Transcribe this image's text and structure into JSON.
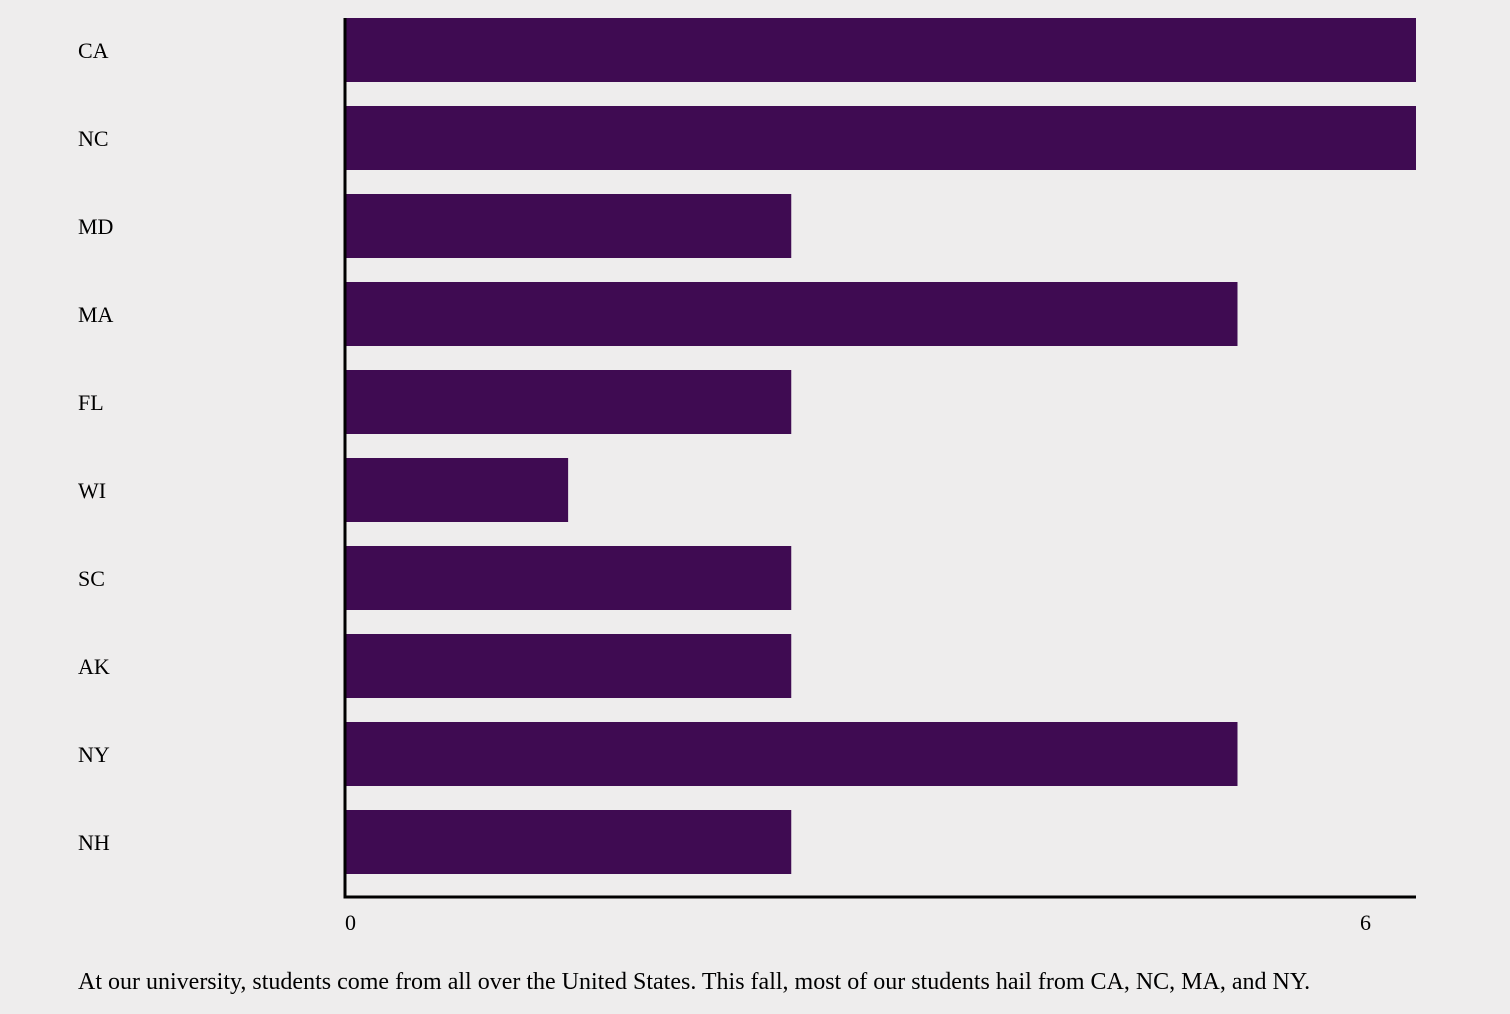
{
  "chart_data": {
    "type": "bar",
    "orientation": "horizontal",
    "categories": [
      "CA",
      "NC",
      "MD",
      "MA",
      "FL",
      "WI",
      "SC",
      "AK",
      "NY",
      "NH"
    ],
    "values": [
      6,
      6,
      2.5,
      5,
      2.5,
      1.25,
      2.5,
      2.5,
      5,
      2.5
    ],
    "xlim": [
      0,
      6
    ],
    "xticks": [
      "0",
      "6"
    ],
    "title": "",
    "xlabel": "",
    "ylabel": "",
    "grid": false,
    "bar_color": "#3f0b52",
    "background_color": "#eeeded"
  },
  "caption": "At our university, students come from all over the United States. This fall, most of our students hail from CA, NC, MA, and NY."
}
